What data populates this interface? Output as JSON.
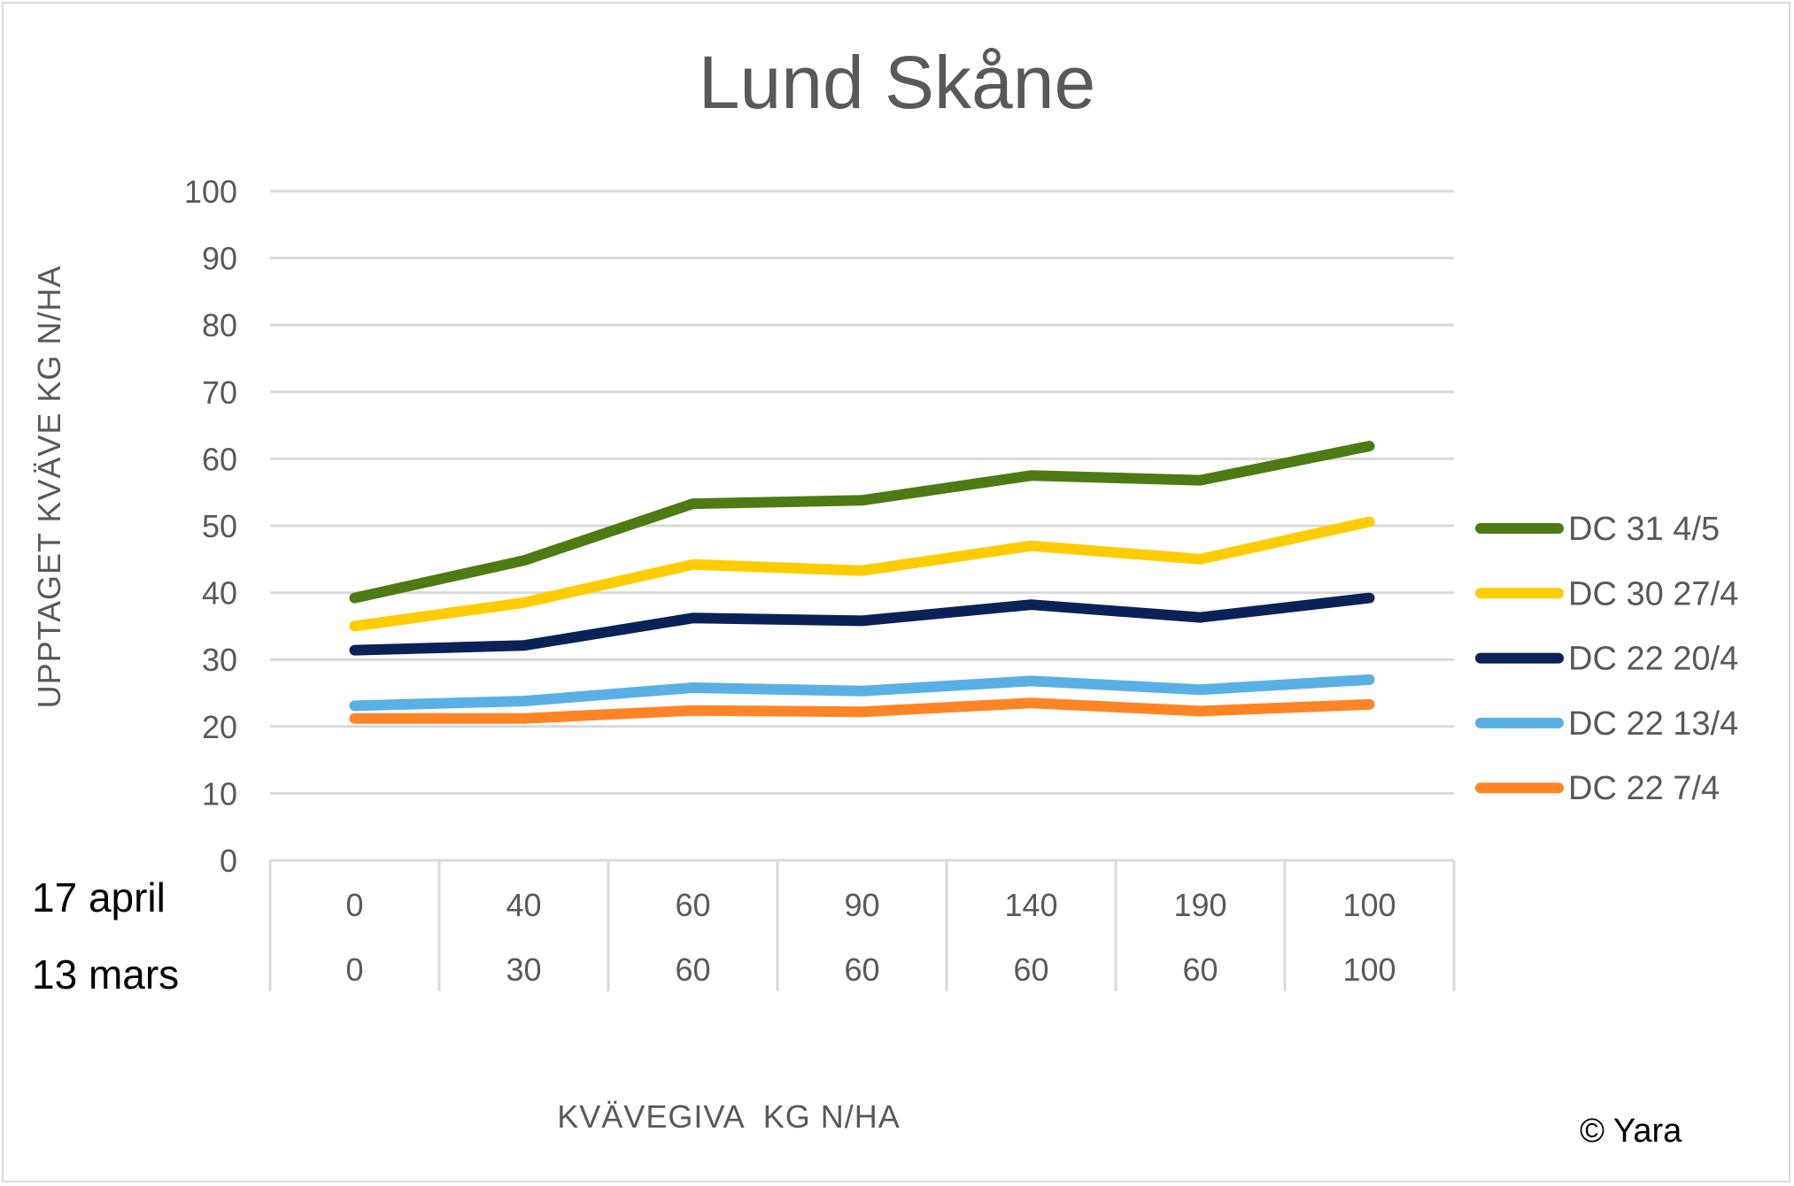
{
  "chart_data": {
    "type": "line",
    "title": "Lund Skåne",
    "ylabel": "UPPTAGET KVÄVE KG N/HA",
    "xlabel": "KVÄVEGIVA  KG N/HA",
    "ylim": [
      0,
      100
    ],
    "yticks": [
      "0",
      "10",
      "20",
      "30",
      "40",
      "50",
      "60",
      "70",
      "80",
      "90",
      "100"
    ],
    "grid": true,
    "legend_position": "right",
    "category_rows": [
      {
        "label": "17 april",
        "values": [
          "0",
          "40",
          "60",
          "90",
          "140",
          "190",
          "100"
        ]
      },
      {
        "label": "13 mars",
        "values": [
          "0",
          "30",
          "60",
          "60",
          "60",
          "60",
          "100"
        ]
      }
    ],
    "series": [
      {
        "name": "DC 31 4/5",
        "color": "#4e7a14",
        "values": [
          39.2,
          44.8,
          53.3,
          53.8,
          57.5,
          56.8,
          61.9
        ]
      },
      {
        "name": "DC 30 27/4",
        "color": "#ffcc00",
        "values": [
          35.0,
          38.5,
          44.2,
          43.3,
          47.0,
          45.0,
          50.6
        ]
      },
      {
        "name": "DC 22 20/4",
        "color": "#0b2258",
        "values": [
          31.4,
          32.1,
          36.2,
          35.8,
          38.2,
          36.3,
          39.2
        ]
      },
      {
        "name": "DC 22 13/4",
        "color": "#5ab0e4",
        "values": [
          23.1,
          23.8,
          25.8,
          25.3,
          26.8,
          25.5,
          27.0
        ]
      },
      {
        "name": "DC 22 7/4",
        "color": "#ff8426",
        "values": [
          21.2,
          21.2,
          22.4,
          22.2,
          23.5,
          22.3,
          23.3
        ]
      }
    ]
  },
  "copyright": "© Yara"
}
